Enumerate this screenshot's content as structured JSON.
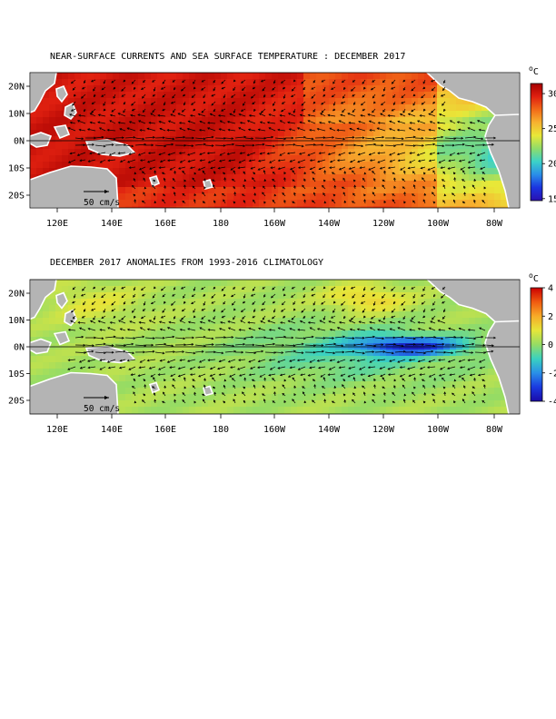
{
  "panels": [
    {
      "id": "sst",
      "title": "NEAR-SURFACE CURRENTS AND SEA SURFACE TEMPERATURE : DECEMBER 2017",
      "field": "sea surface temperature",
      "colorbar": {
        "unit_text": "o",
        "unit_letter": "C",
        "ticks": [
          "30",
          "25",
          "20",
          "15"
        ],
        "range": [
          14,
          31
        ],
        "colors_high_to_low": [
          "#a50000",
          "#e02010",
          "#f26a18",
          "#f7b230",
          "#e8e838",
          "#8fdc6a",
          "#3cd2c8",
          "#2a8ee8",
          "#1b34e0",
          "#2a10b0"
        ]
      },
      "scale_arrow_label": "50 cm/s"
    },
    {
      "id": "anomaly",
      "title": "DECEMBER 2017 ANOMALIES FROM 1993-2016 CLIMATOLOGY",
      "field": "sea surface temperature anomaly",
      "colorbar": {
        "unit_text": "o",
        "unit_letter": "C",
        "ticks": [
          "4",
          "2",
          "0",
          "-2",
          "-4"
        ],
        "range": [
          -4,
          4
        ],
        "colors_high_to_low": [
          "#cc0000",
          "#f05a10",
          "#f7ab28",
          "#e6e63a",
          "#96dc64",
          "#3ad2c0",
          "#2a90e8",
          "#1a3ae0",
          "#1a0aa8"
        ]
      },
      "scale_arrow_label": "50 cm/s"
    }
  ],
  "axes": {
    "lon_ticks": [
      "120E",
      "140E",
      "160E",
      "180",
      "160W",
      "140W",
      "120W",
      "100W",
      "80W"
    ],
    "lat_ticks": [
      "20N",
      "10N",
      "0N",
      "10S",
      "20S"
    ]
  },
  "colors": {
    "land": "#b4b4b4",
    "coast": "#ffffff",
    "arrows": "#000000"
  }
}
